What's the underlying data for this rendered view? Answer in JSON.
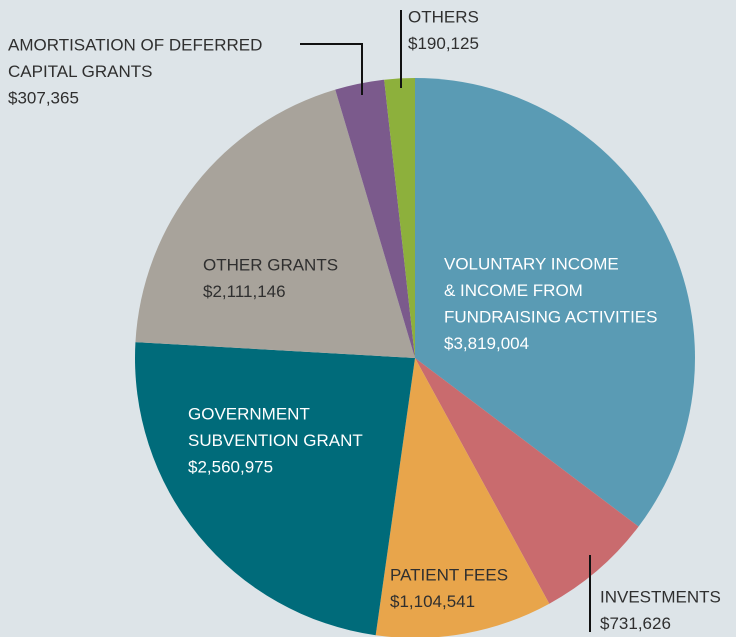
{
  "chart_data": {
    "type": "pie",
    "categories": [
      [
        "VOLUNTARY INCOME",
        "& INCOME FROM",
        "FUNDRAISING ACTIVITIES"
      ],
      [
        "INVESTMENTS"
      ],
      [
        "PATIENT FEES"
      ],
      [
        "GOVERNMENT",
        "SUBVENTION GRANT"
      ],
      [
        "OTHER GRANTS"
      ],
      [
        "AMORTISATION OF DEFERRED",
        "CAPITAL GRANTS"
      ],
      [
        "OTHERS"
      ]
    ],
    "values": [
      3819004,
      731626,
      1104541,
      2560975,
      2111146,
      307365,
      190125
    ],
    "value_labels": [
      "$3,819,004",
      "$731,626",
      "$1,104,541",
      "$2,560,975",
      "$2,111,146",
      "$307,365",
      "$190,125"
    ],
    "colors": [
      "#5a9bb4",
      "#c96b6e",
      "#e8a54b",
      "#006b7a",
      "#a8a39b",
      "#7b5a8c",
      "#8db03c"
    ]
  }
}
